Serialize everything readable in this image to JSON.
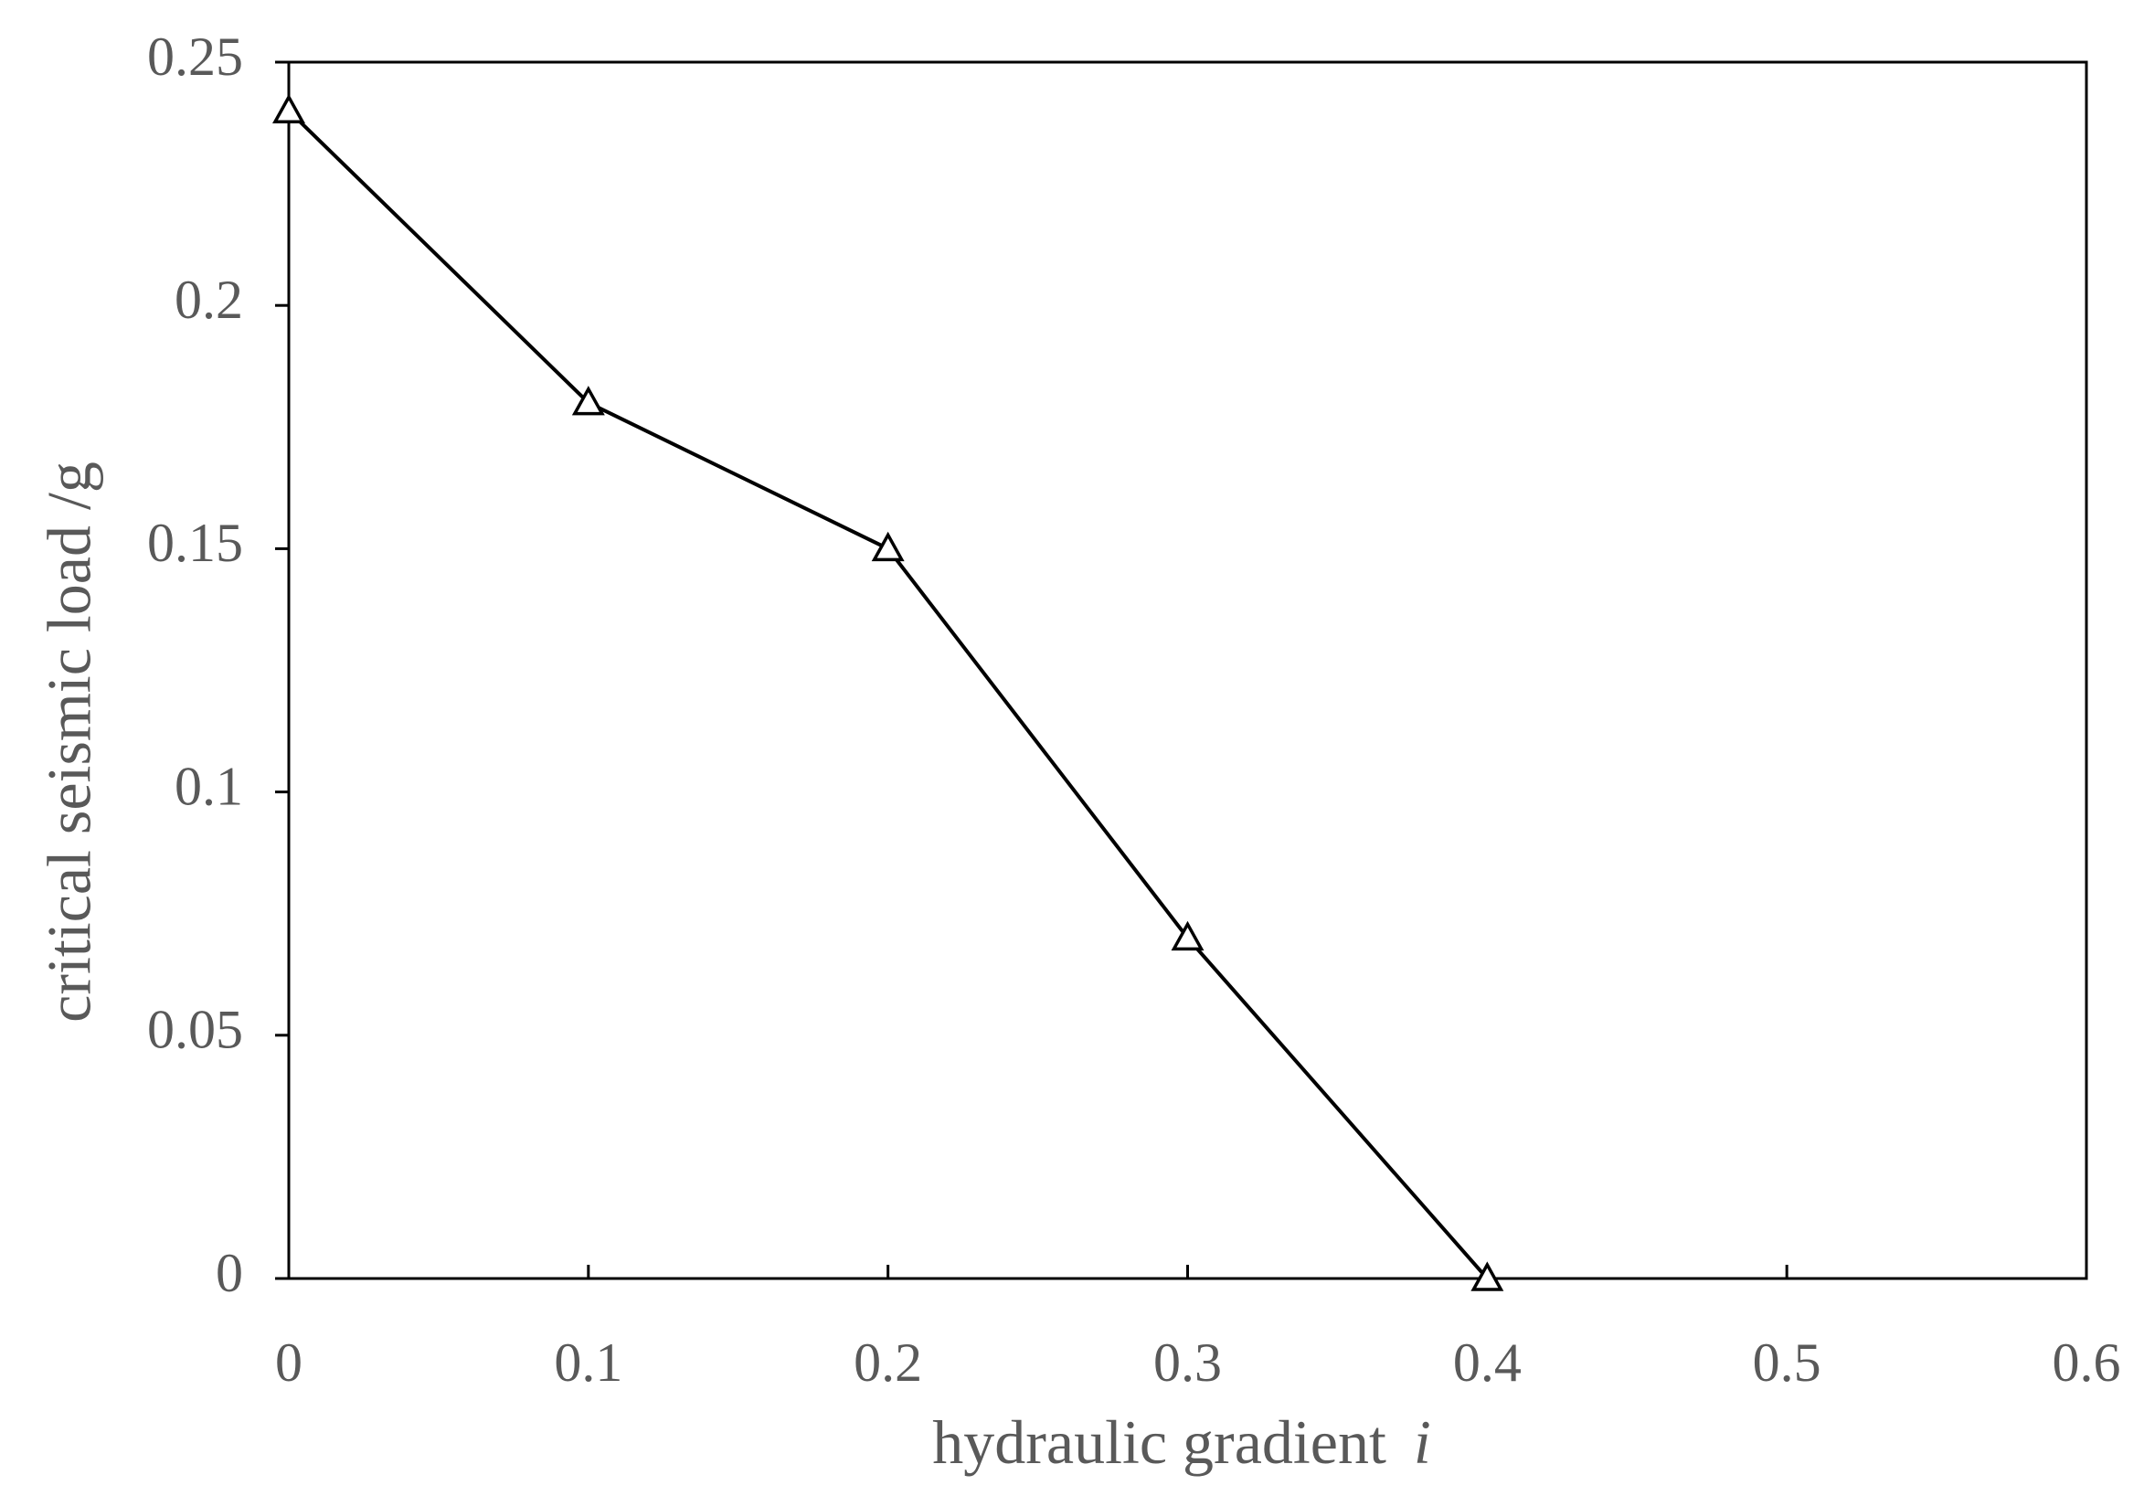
{
  "chart_data": {
    "type": "line",
    "x_label": "hydraulic gradient",
    "x_label_symbol": "i",
    "y_label": "critical seismic load /g",
    "x": [
      0,
      0.1,
      0.2,
      0.3,
      0.4
    ],
    "series": [
      {
        "color": "#000000",
        "marker": "triangle",
        "values": [
          0.24,
          0.18,
          0.15,
          0.07,
          0
        ]
      }
    ],
    "xlim": [
      0,
      0.6
    ],
    "xticks": [
      0,
      0.1,
      0.2,
      0.3,
      0.4,
      0.5,
      0.6
    ],
    "ylim": [
      0,
      0.25
    ],
    "yticks": [
      0,
      0.05,
      0.1,
      0.15,
      0.2,
      0.25
    ],
    "grid": false
  }
}
